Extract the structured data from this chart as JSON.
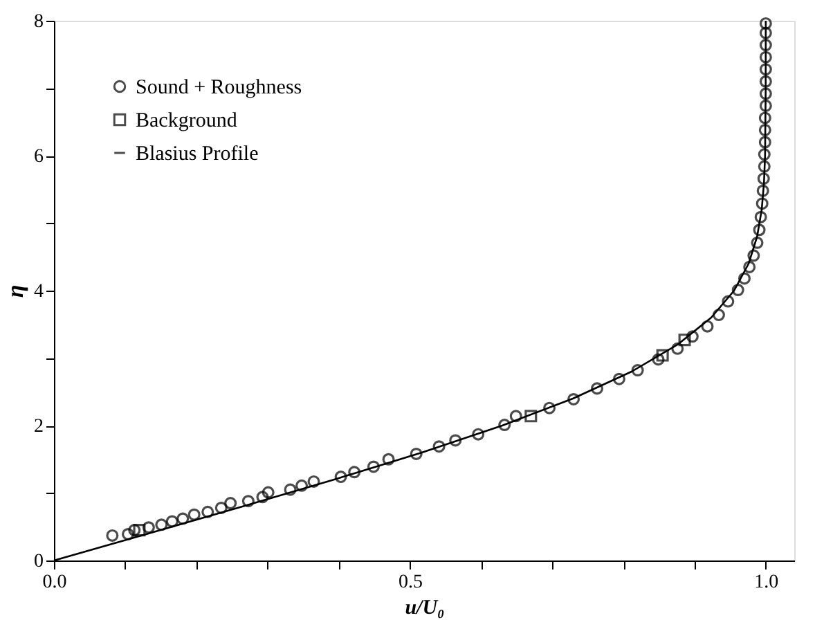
{
  "chart_data": {
    "type": "scatter",
    "xlabel": "u/U₀",
    "ylabel": "η",
    "xlim": [
      0,
      1.04
    ],
    "ylim": [
      0,
      8
    ],
    "xticks": [
      {
        "value": 0,
        "label": "0.0"
      },
      {
        "value": 0.1,
        "label": null
      },
      {
        "value": 0.2,
        "label": null
      },
      {
        "value": 0.3,
        "label": null
      },
      {
        "value": 0.4,
        "label": null
      },
      0.5,
      {
        "value": 0.6,
        "label": null
      },
      {
        "value": 0.7,
        "label": null
      },
      {
        "value": 0.8,
        "label": null
      },
      {
        "value": 0.9,
        "label": null
      },
      {
        "value": 1,
        "label": "1.0"
      }
    ],
    "yticks": [
      0,
      {
        "value": 1,
        "label": null
      },
      2,
      {
        "value": 3,
        "label": null
      },
      4,
      {
        "value": 5,
        "label": null
      },
      6,
      {
        "value": 7,
        "label": null
      },
      8
    ],
    "legend": "top left",
    "grid": false,
    "series": [
      {
        "name": "Sound + Roughness",
        "marker": "circle",
        "color": "#000000",
        "x": [
          0.082,
          0.104,
          0.113,
          0.133,
          0.151,
          0.166,
          0.181,
          0.197,
          0.216,
          0.235,
          0.248,
          0.273,
          0.293,
          0.301,
          0.332,
          0.348,
          0.365,
          0.403,
          0.422,
          0.449,
          0.47,
          0.509,
          0.541,
          0.564,
          0.596,
          0.633,
          0.649,
          0.696,
          0.73,
          0.763,
          0.794,
          0.82,
          0.849,
          0.876,
          0.897,
          0.918,
          0.934,
          0.947,
          0.961,
          0.97,
          0.977,
          0.983,
          0.988,
          0.991,
          0.993,
          0.995,
          0.996,
          0.997,
          0.998,
          0.998,
          0.999,
          0.999,
          0.999,
          1.0,
          1.0,
          1.0,
          1.0,
          1.0,
          1.0,
          1.0,
          1.0
        ],
        "values": [
          0.37,
          0.39,
          0.45,
          0.49,
          0.53,
          0.58,
          0.62,
          0.68,
          0.72,
          0.78,
          0.85,
          0.88,
          0.94,
          1.01,
          1.05,
          1.11,
          1.17,
          1.24,
          1.31,
          1.39,
          1.5,
          1.58,
          1.69,
          1.78,
          1.87,
          2.01,
          2.14,
          2.26,
          2.39,
          2.55,
          2.69,
          2.82,
          2.98,
          3.14,
          3.32,
          3.47,
          3.64,
          3.84,
          4.01,
          4.18,
          4.35,
          4.52,
          4.71,
          4.9,
          5.09,
          5.29,
          5.48,
          5.66,
          5.84,
          6.02,
          6.2,
          6.38,
          6.56,
          6.74,
          6.92,
          7.1,
          7.28,
          7.46,
          7.64,
          7.82,
          7.96
        ]
      },
      {
        "name": "Background",
        "marker": "square",
        "color": "#000000",
        "x": [
          0.12,
          0.67,
          0.855,
          0.886
        ],
        "values": [
          0.45,
          2.14,
          3.04,
          3.27
        ]
      },
      {
        "name": "Blasius Profile",
        "type": "line",
        "line_style": "solid",
        "marker": "none",
        "color": "#000000",
        "x": [
          0,
          0.1328,
          0.2647,
          0.3938,
          0.5168,
          0.6298,
          0.729,
          0.8115,
          0.8761,
          0.9233,
          0.9555,
          0.9759,
          0.9878,
          0.9943,
          0.9975,
          0.999,
          0.9999,
          1.0
        ],
        "values": [
          0,
          0.4,
          0.8,
          1.2,
          1.6,
          2.0,
          2.4,
          2.8,
          3.2,
          3.6,
          4.0,
          4.4,
          4.8,
          5.2,
          5.6,
          6.0,
          7.0,
          8.0
        ]
      }
    ]
  }
}
